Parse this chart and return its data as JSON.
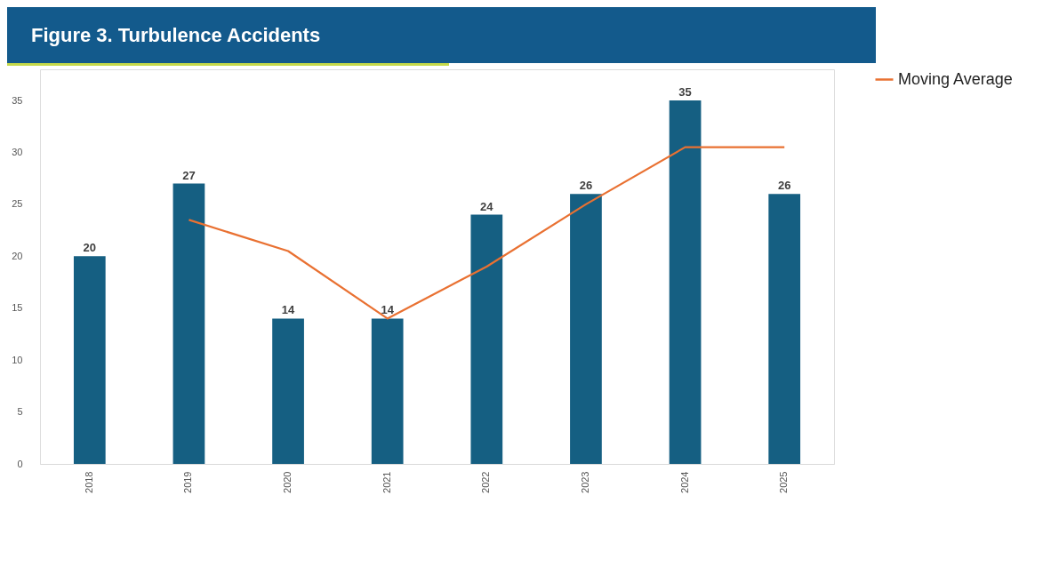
{
  "chart_data": {
    "type": "bar",
    "title": "Figure 3. Turbulence Accidents",
    "categories": [
      "2018",
      "2019",
      "2020",
      "2021",
      "2022",
      "2023",
      "2024",
      "2025"
    ],
    "series": [
      {
        "type": "bar",
        "color": "#155f82",
        "values": [
          20,
          27,
          14,
          14,
          24,
          26,
          35,
          26
        ],
        "value_labels": [
          "20",
          "27",
          "14",
          "14",
          "24",
          "26",
          "35",
          "26"
        ]
      },
      {
        "type": "line",
        "name": "Moving Average",
        "color": "#e97132",
        "values": [
          null,
          23.5,
          20.5,
          14,
          19,
          25,
          30.5,
          30.5
        ]
      }
    ],
    "ylim": [
      0,
      38
    ],
    "yticks": [
      0,
      5,
      10,
      15,
      20,
      25,
      30,
      35
    ],
    "grid": false,
    "legend": "right",
    "marker": "none",
    "line_style": "solid"
  }
}
